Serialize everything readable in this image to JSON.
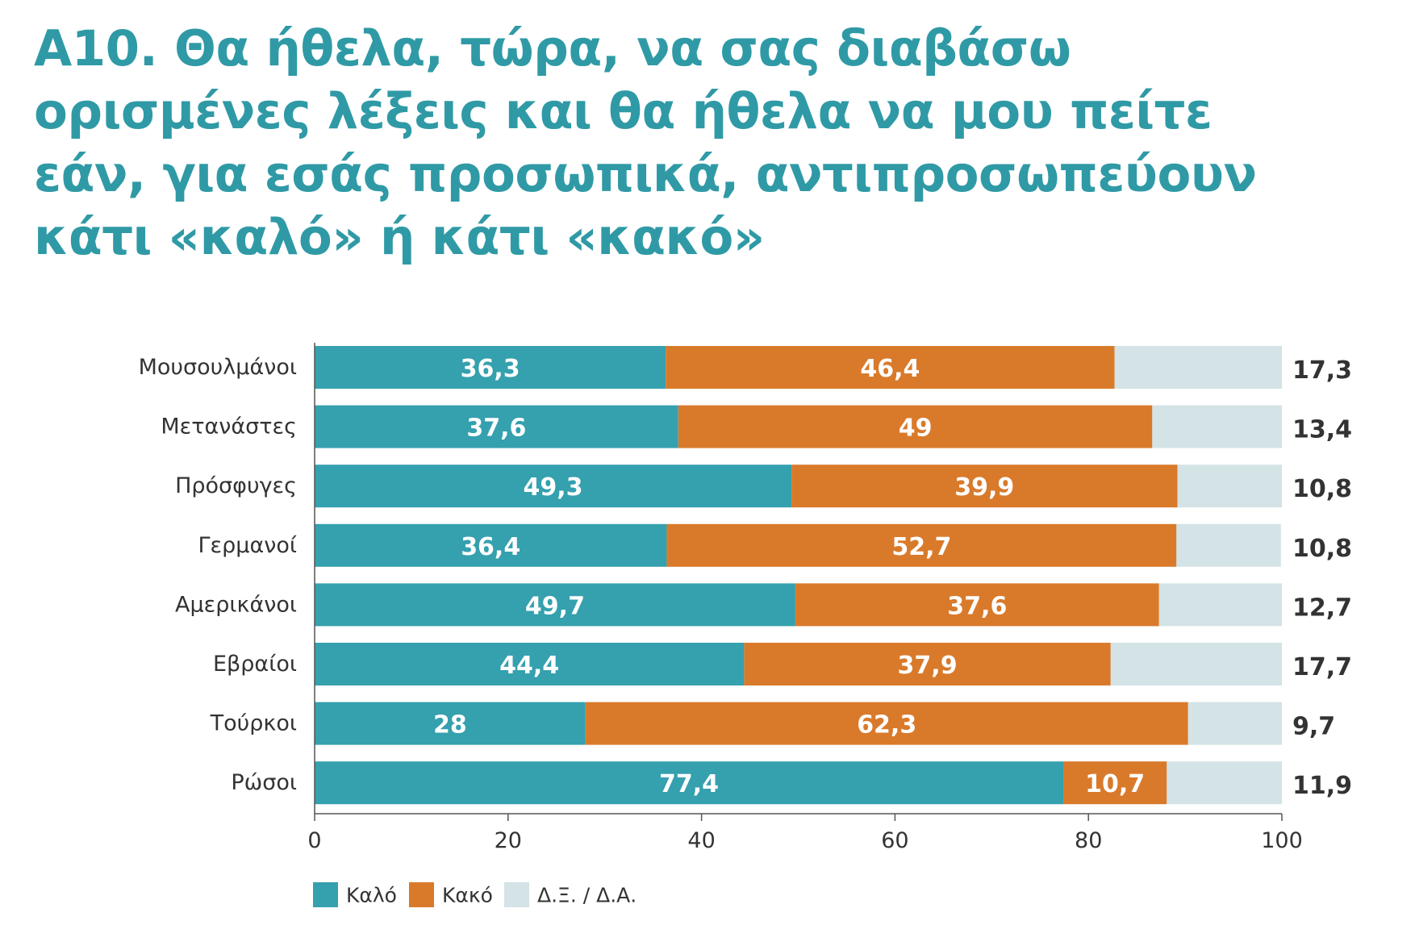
{
  "title": "Α10. Θα ήθελα, τώρα, να σας διαβάσω ορισμένες λέξεις και θα ήθελα να μου πείτε εάν, για εσάς προσωπικά, αντιπροσωπεύουν κάτι «καλό» ή κάτι «κακό»",
  "colors": {
    "title": "#2f9aa6",
    "series": [
      "#35a0ae",
      "#d97a2b",
      "#d3e3e6"
    ]
  },
  "chart_data": {
    "type": "bar",
    "orientation": "horizontal",
    "stacked": true,
    "title": "Α10. Θα ήθελα, τώρα, να σας διαβάσω ορισμένες λέξεις και θα ήθελα να μου πείτε εάν, για εσάς προσωπικά, αντιπροσωπεύουν κάτι «καλό» ή κάτι «κακό»",
    "categories": [
      "Μουσουλμάνοι",
      "Μετανάστες",
      "Πρόσφυγες",
      "Γερμανοί",
      "Αμερικάνοι",
      "Εβραίοι",
      "Τούρκοι",
      "Ρώσοι"
    ],
    "series": [
      {
        "name": "Καλό",
        "values": [
          36.3,
          37.6,
          49.3,
          36.4,
          49.7,
          44.4,
          28,
          77.4
        ],
        "labels": [
          "36,3",
          "37,6",
          "49,3",
          "36,4",
          "49,7",
          "44,4",
          "28",
          "77,4"
        ]
      },
      {
        "name": "Κακό",
        "values": [
          46.4,
          49,
          39.9,
          52.7,
          37.6,
          37.9,
          62.3,
          10.7
        ],
        "labels": [
          "46,4",
          "49",
          "39,9",
          "52,7",
          "37,6",
          "37,9",
          "62,3",
          "10,7"
        ]
      },
      {
        "name": "Δ.Ξ. / Δ.Α.",
        "values": [
          17.3,
          13.4,
          10.8,
          10.8,
          12.7,
          17.7,
          9.7,
          11.9
        ],
        "labels": [
          "17,3",
          "13,4",
          "10,8",
          "10,8",
          "12,7",
          "17,7",
          "9,7",
          "11,9"
        ]
      }
    ],
    "xlim": [
      0,
      100
    ],
    "xticks": [
      0,
      20,
      40,
      60,
      80,
      100
    ],
    "xtick_labels": [
      "0",
      "20",
      "40",
      "60",
      "80",
      "100"
    ],
    "grid": false,
    "legend": "bottom-left"
  }
}
